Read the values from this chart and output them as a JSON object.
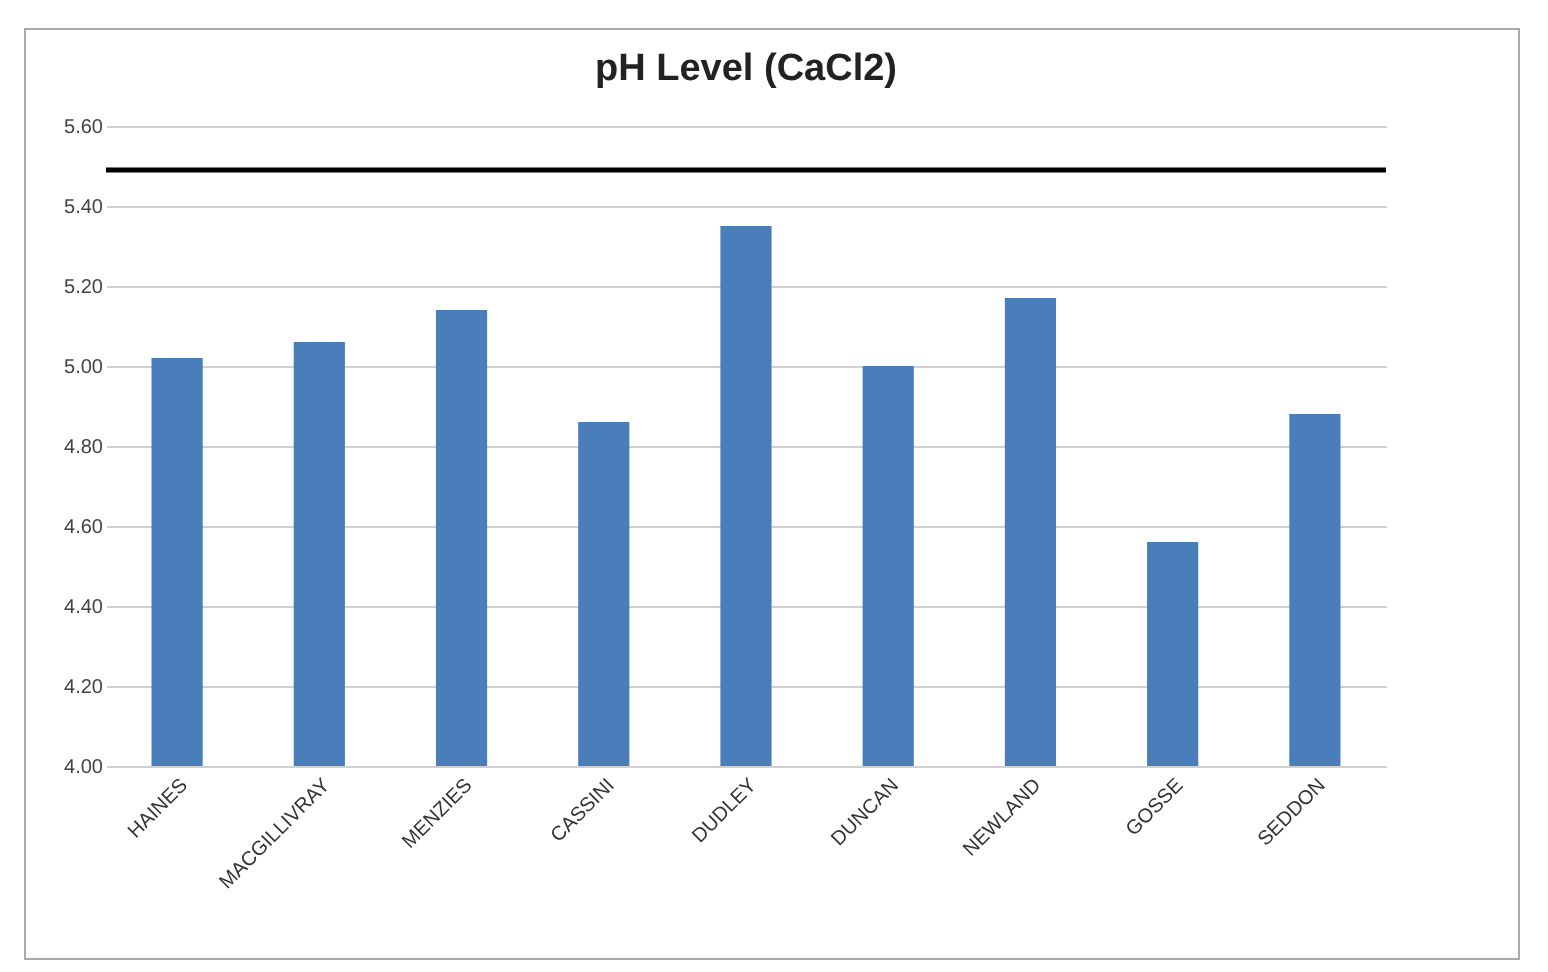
{
  "chart_data": {
    "type": "bar",
    "title": "pH Level (CaCl2)",
    "categories": [
      "HAINES",
      "MACGILLIVRAY",
      "MENZIES",
      "CASSINI",
      "DUDLEY",
      "DUNCAN",
      "NEWLAND",
      "GOSSE",
      "SEDDON"
    ],
    "values": [
      5.02,
      5.06,
      5.14,
      4.86,
      5.35,
      5.0,
      5.17,
      4.56,
      4.88
    ],
    "color": "#4a7ebb",
    "ylim": [
      4.0,
      5.6
    ],
    "yticks": [
      {
        "value": 4.0,
        "label": "4.00"
      },
      {
        "value": 4.2,
        "label": "4.20"
      },
      {
        "value": 4.4,
        "label": "4.40"
      },
      {
        "value": 4.6,
        "label": "4.60"
      },
      {
        "value": 4.8,
        "label": "4.80"
      },
      {
        "value": 5.0,
        "label": "5.00"
      },
      {
        "value": 5.2,
        "label": "5.20"
      },
      {
        "value": 5.4,
        "label": "5.40"
      },
      {
        "value": 5.6,
        "label": "5.60"
      }
    ],
    "grid": "y",
    "ref_lines": [
      {
        "axis": "y",
        "value": 5.49,
        "color": "#000000"
      }
    ]
  }
}
